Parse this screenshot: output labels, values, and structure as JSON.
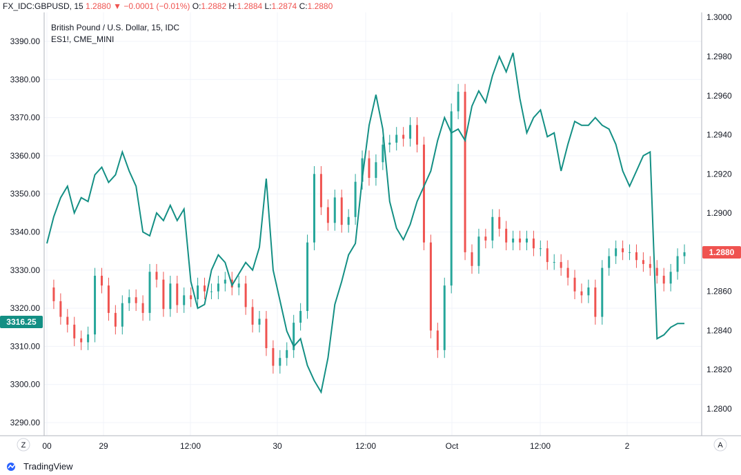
{
  "header": {
    "symbol": "FX_IDC:GBPUSD, 15",
    "last": "1.2880",
    "change": "−0.0001 (−0.01%)",
    "o_label": "O:",
    "o_value": "1.2882",
    "h_label": "H:",
    "h_value": "1.2884",
    "l_label": "L:",
    "l_value": "1.2874",
    "c_label": "C:",
    "c_value": "1.2880"
  },
  "legend": {
    "main": "British Pound / U.S. Dollar, 15, IDC",
    "overlay": "ES1!, CME_MINI"
  },
  "left_axis_badge": "3316.25",
  "right_axis_badge": "1.2880",
  "corner_left": "Z",
  "corner_right": "A",
  "footer": {
    "brand": "TradingView"
  },
  "colors": {
    "up": "#26a69a",
    "down": "#ef5350",
    "overlay": "#138f84",
    "badge_green": "#138f84",
    "badge_red": "#ef5350"
  },
  "chart_data": {
    "type": "line",
    "title": "British Pound / U.S. Dollar, 15, IDC",
    "x_ticks": [
      "00",
      "29",
      "12:00",
      "30",
      "12:00",
      "Oct",
      "12:00",
      "2"
    ],
    "left_axis": {
      "ticks": [
        3290,
        3300,
        3310,
        3320,
        3330,
        3340,
        3350,
        3360,
        3370,
        3380,
        3390
      ],
      "range": [
        3286,
        3394
      ]
    },
    "right_axis": {
      "ticks": [
        1.28,
        1.282,
        1.284,
        1.286,
        1.288,
        1.29,
        1.292,
        1.294,
        1.296,
        1.298,
        1.3
      ],
      "range": [
        1.2784,
        1.3002
      ]
    },
    "series": [
      {
        "name": "ES1!, CME_MINI",
        "axis": "left",
        "x": [
          0,
          4,
          8,
          12,
          16,
          20,
          24,
          28,
          32,
          36,
          40,
          44,
          48,
          52,
          56,
          60,
          64,
          68,
          72,
          76,
          80,
          84,
          88,
          92,
          96,
          100,
          104,
          108,
          112,
          116,
          120,
          124,
          128,
          132,
          136,
          140,
          144,
          148,
          152,
          156,
          160,
          164,
          168,
          172,
          176,
          180,
          184,
          188,
          192,
          196,
          200,
          204,
          208,
          212,
          216,
          220,
          224,
          228,
          232,
          236,
          240,
          244,
          248,
          252,
          256,
          260,
          264,
          268,
          272,
          276,
          280,
          284,
          288,
          292,
          296,
          300,
          304,
          308,
          312,
          316,
          320,
          324,
          328,
          332,
          336,
          340,
          344,
          348,
          352,
          356,
          360,
          364,
          368,
          372
        ],
        "values": [
          3337,
          3344,
          3349,
          3352,
          3345,
          3349,
          3348,
          3355,
          3357,
          3353,
          3355,
          3361,
          3356,
          3352,
          3340,
          3339,
          3345,
          3343,
          3347,
          3343,
          3346,
          3327,
          3320,
          3321,
          3330,
          3334,
          3332,
          3326,
          3329,
          3332,
          3330,
          3336,
          3354,
          3330,
          3322,
          3314,
          3310,
          3312,
          3305,
          3301,
          3298,
          3307,
          3321,
          3327,
          3334,
          3337,
          3354,
          3368,
          3376,
          3367,
          3348,
          3341,
          3338,
          3342,
          3348,
          3352,
          3356,
          3364,
          3370,
          3366,
          3367,
          3364,
          3373,
          3377,
          3374,
          3381,
          3386,
          3382,
          3387,
          3375,
          3366,
          3370,
          3372,
          3365,
          3366,
          3356,
          3363,
          3369,
          3368,
          3368,
          3370,
          3368,
          3367,
          3363,
          3356,
          3352,
          3356,
          3360,
          3361,
          3312,
          3313,
          3315,
          3316,
          3316
        ]
      },
      {
        "name": "GBPUSD",
        "axis": "right",
        "x": [
          0,
          4,
          8,
          12,
          16,
          20,
          24,
          28,
          32,
          36,
          40,
          44,
          48,
          52,
          56,
          60,
          64,
          68,
          72,
          76,
          80,
          84,
          88,
          92,
          96,
          100,
          104,
          108,
          112,
          116,
          120,
          124,
          128,
          132,
          136,
          140,
          144,
          148,
          152,
          156,
          160,
          164,
          168,
          172,
          176,
          180,
          184,
          188,
          192,
          196,
          200,
          204,
          208,
          212,
          216,
          220,
          224,
          228,
          232,
          236,
          240,
          244,
          248,
          252,
          256,
          260,
          264,
          268,
          272,
          276,
          280,
          284,
          288,
          292,
          296,
          300,
          304,
          308,
          312,
          316,
          320,
          324,
          328,
          332,
          336,
          340,
          344,
          348,
          352,
          356,
          360,
          364,
          368,
          372
        ],
        "values": [
          1.2862,
          1.2855,
          1.2847,
          1.2843,
          1.2836,
          1.2834,
          1.2838,
          1.2868,
          1.2863,
          1.2849,
          1.2842,
          1.2854,
          1.2857,
          1.2854,
          1.2849,
          1.287,
          1.2866,
          1.2851,
          1.2864,
          1.2853,
          1.2858,
          1.2856,
          1.2863,
          1.286,
          1.286,
          1.2864,
          1.2866,
          1.2862,
          1.2864,
          1.2852,
          1.2843,
          1.2846,
          1.2831,
          1.2822,
          1.2826,
          1.283,
          1.2844,
          1.285,
          1.2885,
          1.292,
          1.2903,
          1.2895,
          1.2908,
          1.2894,
          1.2898,
          1.2916,
          1.2928,
          1.2918,
          1.2926,
          1.2935,
          1.2936,
          1.294,
          1.2938,
          1.2945,
          1.2935,
          1.2885,
          1.284,
          1.283,
          1.2863,
          1.2952,
          1.2962,
          1.288,
          1.2873,
          1.2888,
          1.2886,
          1.2898,
          1.2892,
          1.2885,
          1.2887,
          1.2885,
          1.2887,
          1.2882,
          1.2882,
          1.2875,
          1.2875,
          1.2872,
          1.2867,
          1.286,
          1.2858,
          1.2862,
          1.2847,
          1.2872,
          1.2878,
          1.2882,
          1.288,
          1.288,
          1.2876,
          1.2874,
          1.2872,
          1.2868,
          1.2864,
          1.287,
          1.2878,
          1.288
        ]
      }
    ],
    "grid": true,
    "legend_position": "top-left"
  }
}
